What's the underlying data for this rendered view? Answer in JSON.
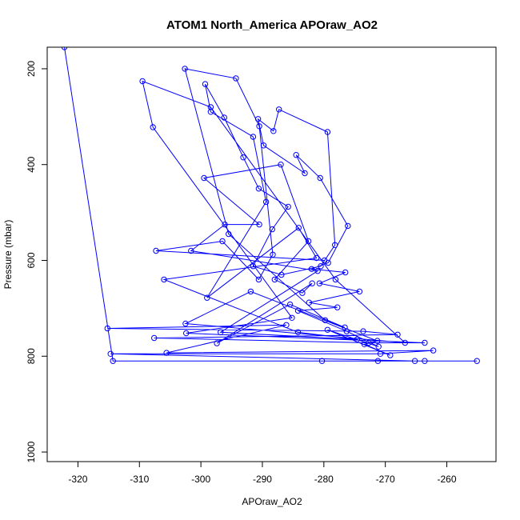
{
  "chart_data": {
    "type": "line",
    "title": "ATOM1 North_America APOraw_AO2",
    "xlabel": "APOraw_AO2",
    "ylabel": "Pressure (mbar)",
    "xlim": [
      -325,
      -252
    ],
    "ylim": [
      1020,
      155
    ],
    "y_reversed": true,
    "grid": false,
    "xticks": [
      -320,
      -310,
      -300,
      -290,
      -280,
      -270,
      -260
    ],
    "yticks": [
      200,
      400,
      600,
      800,
      1000
    ],
    "colors": {
      "series": "#0000ff"
    },
    "series": [
      {
        "points": [
          [
            -322.2,
            155
          ],
          [
            -314.3,
            810
          ],
          [
            -280.3,
            810
          ],
          [
            -271.2,
            810
          ],
          [
            -255.1,
            810
          ],
          [
            -263.6,
            810
          ],
          [
            -265.2,
            810
          ],
          [
            -314.7,
            795
          ],
          [
            -270.8,
            795
          ],
          [
            -262.2,
            788
          ],
          [
            -305.6,
            793
          ],
          [
            -286.1,
            735
          ],
          [
            -315.2,
            742
          ],
          [
            -273.6,
            748
          ],
          [
            -268.0,
            755
          ],
          [
            -307.6,
            762
          ],
          [
            -272.7,
            772
          ],
          [
            -263.6,
            772
          ],
          [
            -302.4,
            752
          ],
          [
            -285.2,
            720
          ],
          [
            -307.8,
            322
          ],
          [
            -309.5,
            226
          ],
          [
            -298.4,
            280
          ],
          [
            -278.1,
            640
          ],
          [
            -266.8,
            772
          ],
          [
            -302.5,
            732
          ],
          [
            -291.9,
            665
          ],
          [
            -271.3,
            768
          ],
          [
            -273.4,
            775
          ],
          [
            -269.2,
            798
          ],
          [
            -279.4,
            745
          ],
          [
            -271.1,
            780
          ],
          [
            -276.3,
            748
          ],
          [
            -284.2,
            705
          ],
          [
            -277.8,
            698
          ],
          [
            -282.4,
            688
          ],
          [
            -274.2,
            665
          ],
          [
            -280.7,
            648
          ],
          [
            -276.5,
            625
          ],
          [
            -282.0,
            618
          ],
          [
            -279.3,
            605
          ],
          [
            -276.1,
            528
          ],
          [
            -280.6,
            428
          ],
          [
            -284.5,
            380
          ],
          [
            -283.1,
            418
          ],
          [
            -289.8,
            360
          ],
          [
            -290.7,
            305
          ],
          [
            -288.2,
            330
          ],
          [
            -287.3,
            285
          ],
          [
            -279.4,
            332
          ],
          [
            -278.2,
            568
          ],
          [
            -280.5,
            612
          ],
          [
            -286.9,
            630
          ],
          [
            -291.5,
            612
          ],
          [
            -288.4,
            535
          ],
          [
            -285.8,
            488
          ],
          [
            -290.6,
            450
          ],
          [
            -293.1,
            385
          ],
          [
            -296.2,
            302
          ],
          [
            -299.3,
            232
          ],
          [
            -298.4,
            290
          ],
          [
            -291.5,
            342
          ],
          [
            -289.4,
            478
          ],
          [
            -299.0,
            678
          ],
          [
            -284.1,
            532
          ],
          [
            -281.2,
            595
          ],
          [
            -306.0,
            640
          ],
          [
            -284.2,
            750
          ],
          [
            -274.6,
            765
          ],
          [
            -296.8,
            750
          ],
          [
            -281.0,
            622
          ],
          [
            -301.6,
            580
          ],
          [
            -296.1,
            525
          ],
          [
            -290.5,
            525
          ],
          [
            -299.5,
            428
          ],
          [
            -287.0,
            400
          ],
          [
            -282.5,
            560
          ],
          [
            -288.0,
            640
          ],
          [
            -283.5,
            668
          ],
          [
            -281.9,
            648
          ],
          [
            -297.4,
            773
          ],
          [
            -285.5,
            692
          ],
          [
            -276.6,
            740
          ],
          [
            -279.8,
            725
          ],
          [
            -295.5,
            545
          ],
          [
            -302.6,
            200
          ],
          [
            -294.3,
            220
          ],
          [
            -290.5,
            320
          ],
          [
            -288.3,
            588
          ],
          [
            -290.6,
            640
          ],
          [
            -296.5,
            560
          ],
          [
            -307.3,
            580
          ],
          [
            -279.9,
            600
          ]
        ]
      }
    ]
  }
}
